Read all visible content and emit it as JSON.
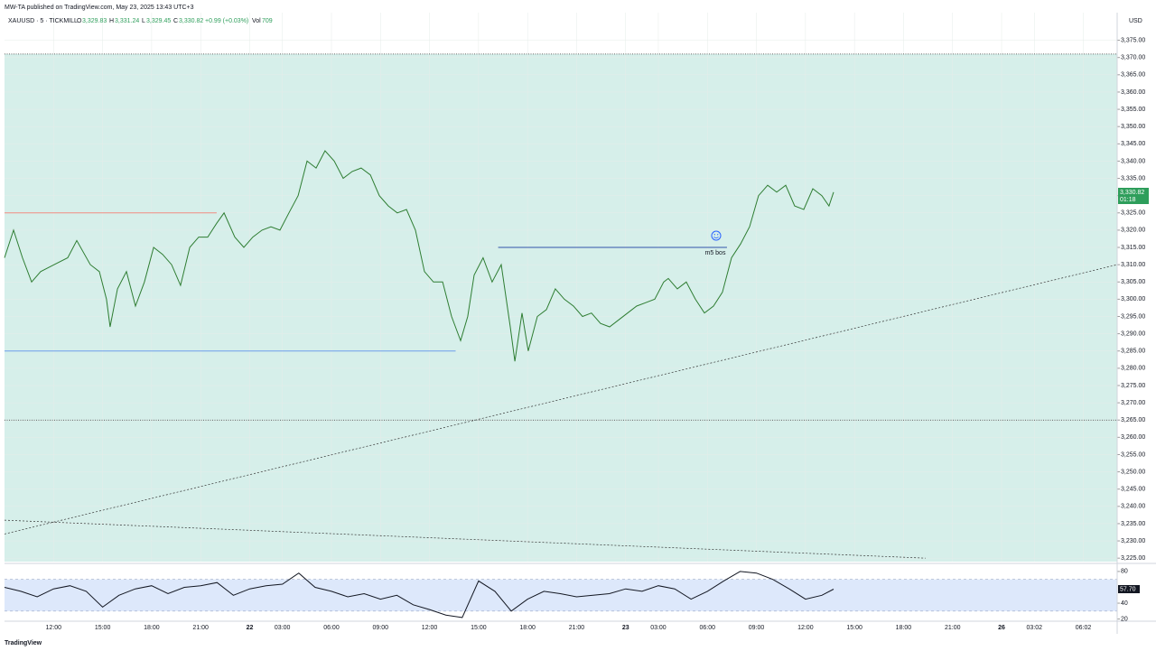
{
  "header": {
    "published": "MW-TA published on TradingView.com, May 23, 2025 13:43 UTC+3",
    "symbol": "XAUUSD · 5 · TICKMILL",
    "o_key": "O",
    "o": "3,329.83",
    "h_key": "H",
    "h": "3,331.24",
    "l_key": "L",
    "l": "3,329.45",
    "c_key": "C",
    "c": "3,330.82",
    "change": "+0.99 (+0.03%)",
    "vol_key": "Vol",
    "vol": "709",
    "currency": "USD",
    "last_label": "3,330.82",
    "countdown": "01:18",
    "rsi_label": "57.70",
    "footer": "TradingView"
  },
  "chart_data": [
    {
      "type": "line",
      "color": "#2e7d32",
      "grid": true,
      "x": [
        0,
        0.55,
        1.1,
        1.66,
        2.21,
        3.04,
        3.87,
        4.42,
        5.25,
        5.8,
        6.24,
        6.46,
        6.91,
        7.46,
        8.01,
        8.56,
        9.12,
        9.67,
        10.22,
        10.77,
        11.33,
        11.88,
        12.43,
        12.98,
        13.43,
        14.09,
        14.64,
        15.19,
        15.75,
        16.3,
        16.85,
        17.4,
        17.96,
        18.51,
        19.06,
        19.61,
        20.17,
        20.72,
        21.27,
        21.82,
        22.38,
        22.93,
        23.48,
        24.03,
        24.59,
        25.14,
        25.69,
        26.24,
        26.8,
        27.35,
        27.9,
        28.34,
        28.73,
        29.28,
        29.83,
        30.39,
        30.94,
        31.22,
        31.66,
        32.04,
        32.6,
        33.15,
        33.7,
        34.25,
        34.81,
        35.36,
        35.91,
        36.46,
        37.02,
        37.57,
        38.12,
        38.67,
        39.23,
        39.78,
        40.33,
        40.61,
        41.16,
        41.71,
        42.27,
        42.82,
        43.37,
        43.92,
        44.48,
        45.03,
        45.58,
        46.13,
        46.69,
        47.24,
        47.79,
        48.34,
        48.9,
        49.45,
        50.0,
        50.44,
        50.72
      ],
      "values": [
        3312,
        3320,
        3312,
        3305,
        3308,
        3310,
        3312,
        3317,
        3310,
        3308,
        3300,
        3292,
        3303,
        3308,
        3298,
        3305,
        3315,
        3313,
        3310,
        3304,
        3315,
        3318,
        3318,
        3322,
        3325,
        3318,
        3315,
        3318,
        3320,
        3321,
        3320,
        3325,
        3330,
        3340,
        3338,
        3343,
        3340,
        3335,
        3337,
        3338,
        3336,
        3330,
        3327,
        3325,
        3326,
        3320,
        3308,
        3305,
        3305,
        3295,
        3288,
        3295,
        3307,
        3312,
        3305,
        3310,
        3292,
        3282,
        3296,
        3285,
        3295,
        3297,
        3303,
        3300,
        3298,
        3295,
        3296,
        3293,
        3292,
        3294,
        3296,
        3298,
        3299,
        3300,
        3305,
        3306,
        3303,
        3305,
        3300,
        3296,
        3298,
        3302,
        3312,
        3316,
        3321,
        3330,
        3333,
        3331,
        3333,
        3327,
        3326,
        3332,
        3330,
        3327,
        3331
      ],
      "xlim": [
        0,
        68.07
      ],
      "ylim": [
        3224,
        3383
      ],
      "yticks": [
        {
          "value": 3225,
          "label": "3,225.00"
        },
        {
          "value": 3230,
          "label": "3,230.00"
        },
        {
          "value": 3235,
          "label": "3,235.00"
        },
        {
          "value": 3240,
          "label": "3,240.00"
        },
        {
          "value": 3245,
          "label": "3,245.00"
        },
        {
          "value": 3250,
          "label": "3,250.00"
        },
        {
          "value": 3255,
          "label": "3,255.00"
        },
        {
          "value": 3260,
          "label": "3,260.00"
        },
        {
          "value": 3265,
          "label": "3,265.00"
        },
        {
          "value": 3270,
          "label": "3,270.00"
        },
        {
          "value": 3275,
          "label": "3,275.00"
        },
        {
          "value": 3280,
          "label": "3,280.00"
        },
        {
          "value": 3285,
          "label": "3,285.00"
        },
        {
          "value": 3290,
          "label": "3,290.00"
        },
        {
          "value": 3295,
          "label": "3,295.00"
        },
        {
          "value": 3300,
          "label": "3,300.00"
        },
        {
          "value": 3305,
          "label": "3,305.00"
        },
        {
          "value": 3310,
          "label": "3,310.00"
        },
        {
          "value": 3315,
          "label": "3,315.00"
        },
        {
          "value": 3320,
          "label": "3,320.00"
        },
        {
          "value": 3325,
          "label": "3,325.00"
        },
        {
          "value": 3330,
          "label": "3,330.00"
        },
        {
          "value": 3335,
          "label": "3,335.00"
        },
        {
          "value": 3340,
          "label": "3,340.00"
        },
        {
          "value": 3345,
          "label": "3,345.00"
        },
        {
          "value": 3350,
          "label": "3,350.00"
        },
        {
          "value": 3355,
          "label": "3,355.00"
        },
        {
          "value": 3360,
          "label": "3,360.00"
        },
        {
          "value": 3365,
          "label": "3,365.00"
        },
        {
          "value": 3370,
          "label": "3,370.00"
        },
        {
          "value": 3375,
          "label": "3,375.00"
        }
      ],
      "xticks": [
        {
          "value": 3,
          "label": "12:00"
        },
        {
          "value": 6,
          "label": "15:00"
        },
        {
          "value": 9,
          "label": "18:00"
        },
        {
          "value": 12,
          "label": "21:00"
        },
        {
          "value": 15,
          "label": "22"
        },
        {
          "value": 17,
          "label": "03:00"
        },
        {
          "value": 20,
          "label": "06:00"
        },
        {
          "value": 23,
          "label": "09:00"
        },
        {
          "value": 26,
          "label": "12:00"
        },
        {
          "value": 29,
          "label": "15:00"
        },
        {
          "value": 32,
          "label": "18:00"
        },
        {
          "value": 35,
          "label": "21:00"
        },
        {
          "value": 38,
          "label": "23"
        },
        {
          "value": 40,
          "label": "03:00"
        },
        {
          "value": 43,
          "label": "06:00"
        },
        {
          "value": 46,
          "label": "09:00"
        },
        {
          "value": 49,
          "label": "12:00"
        },
        {
          "value": 52,
          "label": "15:00"
        },
        {
          "value": 55,
          "label": "18:00"
        },
        {
          "value": 58,
          "label": "21:00"
        },
        {
          "value": 61,
          "label": "26"
        },
        {
          "value": 63,
          "label": "03:02"
        },
        {
          "value": 66,
          "label": "06:02"
        }
      ],
      "zone": {
        "from": 3224,
        "to": 3371,
        "color": "#d6efea"
      },
      "hlines": [
        3371,
        3265
      ],
      "segments": [
        {
          "x": [
            0,
            12.98
          ],
          "y": [
            3325,
            3325
          ],
          "color": "#f28b82"
        },
        {
          "x": [
            0,
            27.6
          ],
          "y": [
            3285,
            3285
          ],
          "color": "#6d9eeb"
        },
        {
          "x": [
            30.2,
            44.2
          ],
          "y": [
            3315,
            3315
          ],
          "color": "#3355aa",
          "label": "m5 bos"
        }
      ],
      "trendlines": [
        {
          "x": [
            0,
            68.07
          ],
          "y": [
            3232,
            3310
          ]
        },
        {
          "x": [
            0,
            56.35
          ],
          "y": [
            3236,
            3225
          ]
        }
      ]
    },
    {
      "type": "line",
      "color": "#131722",
      "x": [
        0,
        1,
        2,
        3,
        4,
        5,
        6,
        7,
        8,
        9,
        10,
        11,
        12,
        13,
        14,
        15,
        16,
        17,
        18,
        19,
        20,
        21,
        22,
        23,
        24,
        25,
        26,
        27,
        28,
        29,
        30,
        31,
        32,
        33,
        34,
        35,
        36,
        37,
        38,
        39,
        40,
        41,
        42,
        43,
        44,
        45,
        46,
        47,
        48,
        49,
        50,
        50.72
      ],
      "values": [
        60,
        55,
        48,
        58,
        62,
        55,
        35,
        50,
        58,
        62,
        52,
        60,
        62,
        66,
        50,
        58,
        62,
        64,
        78,
        60,
        55,
        48,
        52,
        45,
        50,
        38,
        32,
        25,
        22,
        68,
        55,
        30,
        45,
        55,
        52,
        48,
        50,
        52,
        58,
        55,
        62,
        58,
        45,
        55,
        68,
        80,
        78,
        70,
        58,
        45,
        50,
        57.7
      ],
      "xlim": [
        0,
        68.07
      ],
      "ylim": [
        15,
        89
      ],
      "yticks": [
        20,
        40,
        80
      ],
      "band": [
        30,
        70
      ],
      "band_color": "#dde8fb"
    }
  ]
}
